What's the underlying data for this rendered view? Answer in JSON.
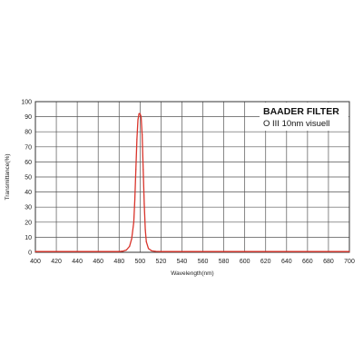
{
  "chart_data": {
    "type": "line",
    "title": "BAADER FILTER",
    "subtitle": "O III 10nm visuell",
    "xlabel": "Wavelength(nm)",
    "ylabel": "Transmittance(%)",
    "xlim": [
      400,
      700
    ],
    "ylim": [
      0,
      100
    ],
    "xticks": [
      400,
      420,
      440,
      460,
      480,
      500,
      520,
      540,
      560,
      580,
      600,
      620,
      640,
      660,
      680,
      700
    ],
    "yticks": [
      0,
      10,
      20,
      30,
      40,
      50,
      60,
      70,
      80,
      90,
      100
    ],
    "grid": true,
    "legend_position": "top-right",
    "series": [
      {
        "color": "#d9342b",
        "x": [
          400,
          480,
          484,
          487,
          490,
          492,
          494,
          495,
          496,
          497,
          498,
          499,
          500,
          501,
          502,
          503,
          504,
          505,
          506,
          508,
          511,
          515,
          520,
          600,
          700
        ],
        "y": [
          0.5,
          0.5,
          0.8,
          1.5,
          4,
          9,
          20,
          35,
          55,
          75,
          88,
          92,
          92,
          90,
          78,
          55,
          32,
          15,
          7,
          2.5,
          1,
          0.6,
          0.5,
          0.5,
          0.5
        ]
      }
    ]
  }
}
